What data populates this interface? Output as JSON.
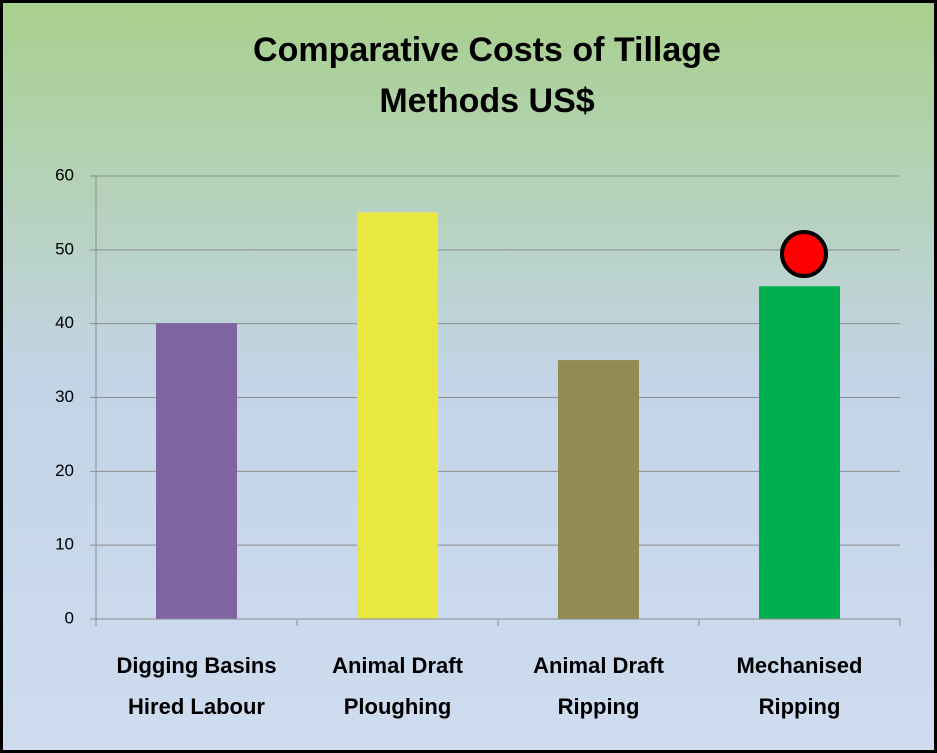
{
  "chart_data": {
    "type": "bar",
    "title": [
      "Comparative Costs  of  Tillage",
      "Methods US$"
    ],
    "categories": [
      [
        "Digging Basins",
        "Hired Labour"
      ],
      [
        "Animal Draft",
        "Ploughing"
      ],
      [
        "Animal Draft",
        "Ripping"
      ],
      [
        "Mechanised",
        "Ripping"
      ]
    ],
    "values": [
      40,
      55,
      35,
      45
    ],
    "colors": [
      "#8064a2",
      "#e8e840",
      "#948a54",
      "#00b050"
    ],
    "ylim": [
      0,
      60
    ],
    "yticks": [
      0,
      10,
      20,
      30,
      40,
      50,
      60
    ],
    "grid": true
  }
}
